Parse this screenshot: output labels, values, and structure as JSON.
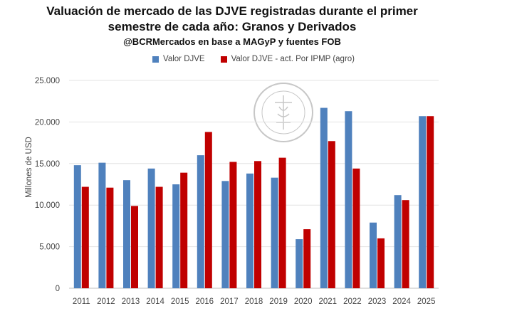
{
  "chart_data": {
    "type": "bar",
    "title": "Valuación de mercado de las DJVE registradas durante el primer",
    "title_line2": "semestre de cada año: Granos y Derivados",
    "subtitle": "@BCRMercados en base a MAGyP y fuentes FOB",
    "ylabel": "Millones de USD",
    "xlabel": "",
    "ylim": [
      0,
      25000
    ],
    "yticks": [
      "0",
      "5.000",
      "10.000",
      "15.000",
      "20.000",
      "25.000"
    ],
    "ytick_values": [
      0,
      5000,
      10000,
      15000,
      20000,
      25000
    ],
    "grid": true,
    "legend_position": "top",
    "categories": [
      "2011",
      "2012",
      "2013",
      "2014",
      "2015",
      "2016",
      "2017",
      "2018",
      "2019",
      "2020",
      "2021",
      "2022",
      "2023",
      "2024",
      "2025"
    ],
    "series": [
      {
        "name": "Valor DJVE",
        "color": "#4f81bd",
        "values": [
          14800,
          15100,
          13000,
          14400,
          12500,
          16000,
          12900,
          13800,
          13300,
          5900,
          21700,
          21300,
          7900,
          11200,
          20700
        ]
      },
      {
        "name": "Valor DJVE - act. Por IPMP (agro)",
        "color": "#c00000",
        "values": [
          12200,
          12100,
          9900,
          12200,
          13900,
          18800,
          15200,
          15300,
          15700,
          7100,
          17700,
          14400,
          6000,
          10600,
          20700
        ]
      }
    ]
  }
}
